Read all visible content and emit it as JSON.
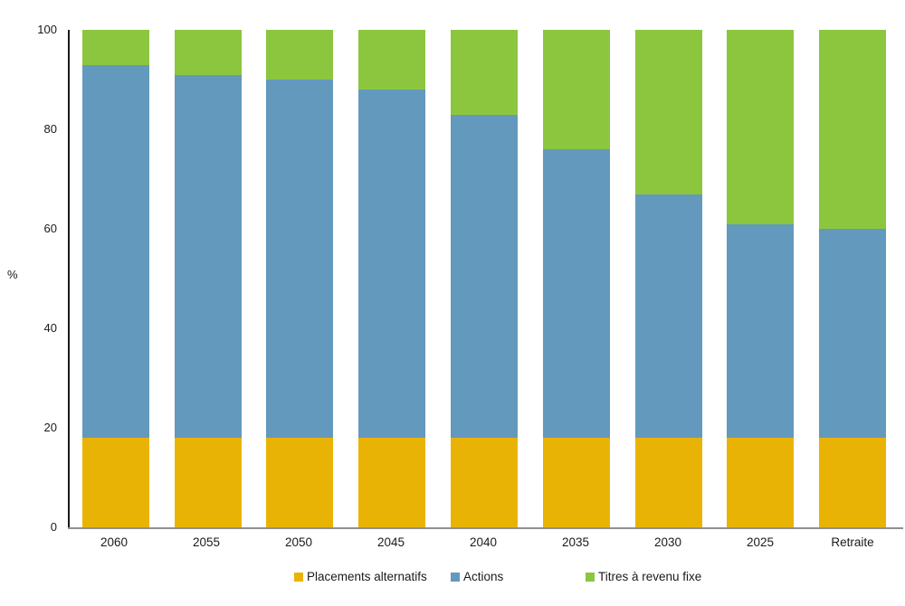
{
  "chart_data": {
    "type": "bar",
    "stacked": true,
    "title": "",
    "categories": [
      "2060",
      "2055",
      "2050",
      "2045",
      "2040",
      "2035",
      "2030",
      "2025",
      "Retraite"
    ],
    "series": [
      {
        "name": "Placements alternatifs",
        "color": "#E9B306",
        "values": [
          18,
          18,
          18,
          18,
          18,
          18,
          18,
          18,
          18
        ]
      },
      {
        "name": "Actions",
        "color": "#6399BD",
        "values": [
          75,
          73,
          72,
          70,
          65,
          58,
          49,
          43,
          42
        ]
      },
      {
        "name": "Titres à revenu fixe",
        "color": "#8CC63F",
        "values": [
          7,
          9,
          10,
          12,
          17,
          24,
          33,
          39,
          40
        ]
      }
    ],
    "xlabel": "",
    "ylabel": "%",
    "ylim": [
      0,
      100
    ],
    "yticks": [
      0,
      20,
      40,
      60,
      80,
      100
    ],
    "grid": false,
    "legend_position": "bottom",
    "axis_line_color": "#1a1a1a",
    "baseline_color": "#909090",
    "background_color": "#ffffff"
  }
}
